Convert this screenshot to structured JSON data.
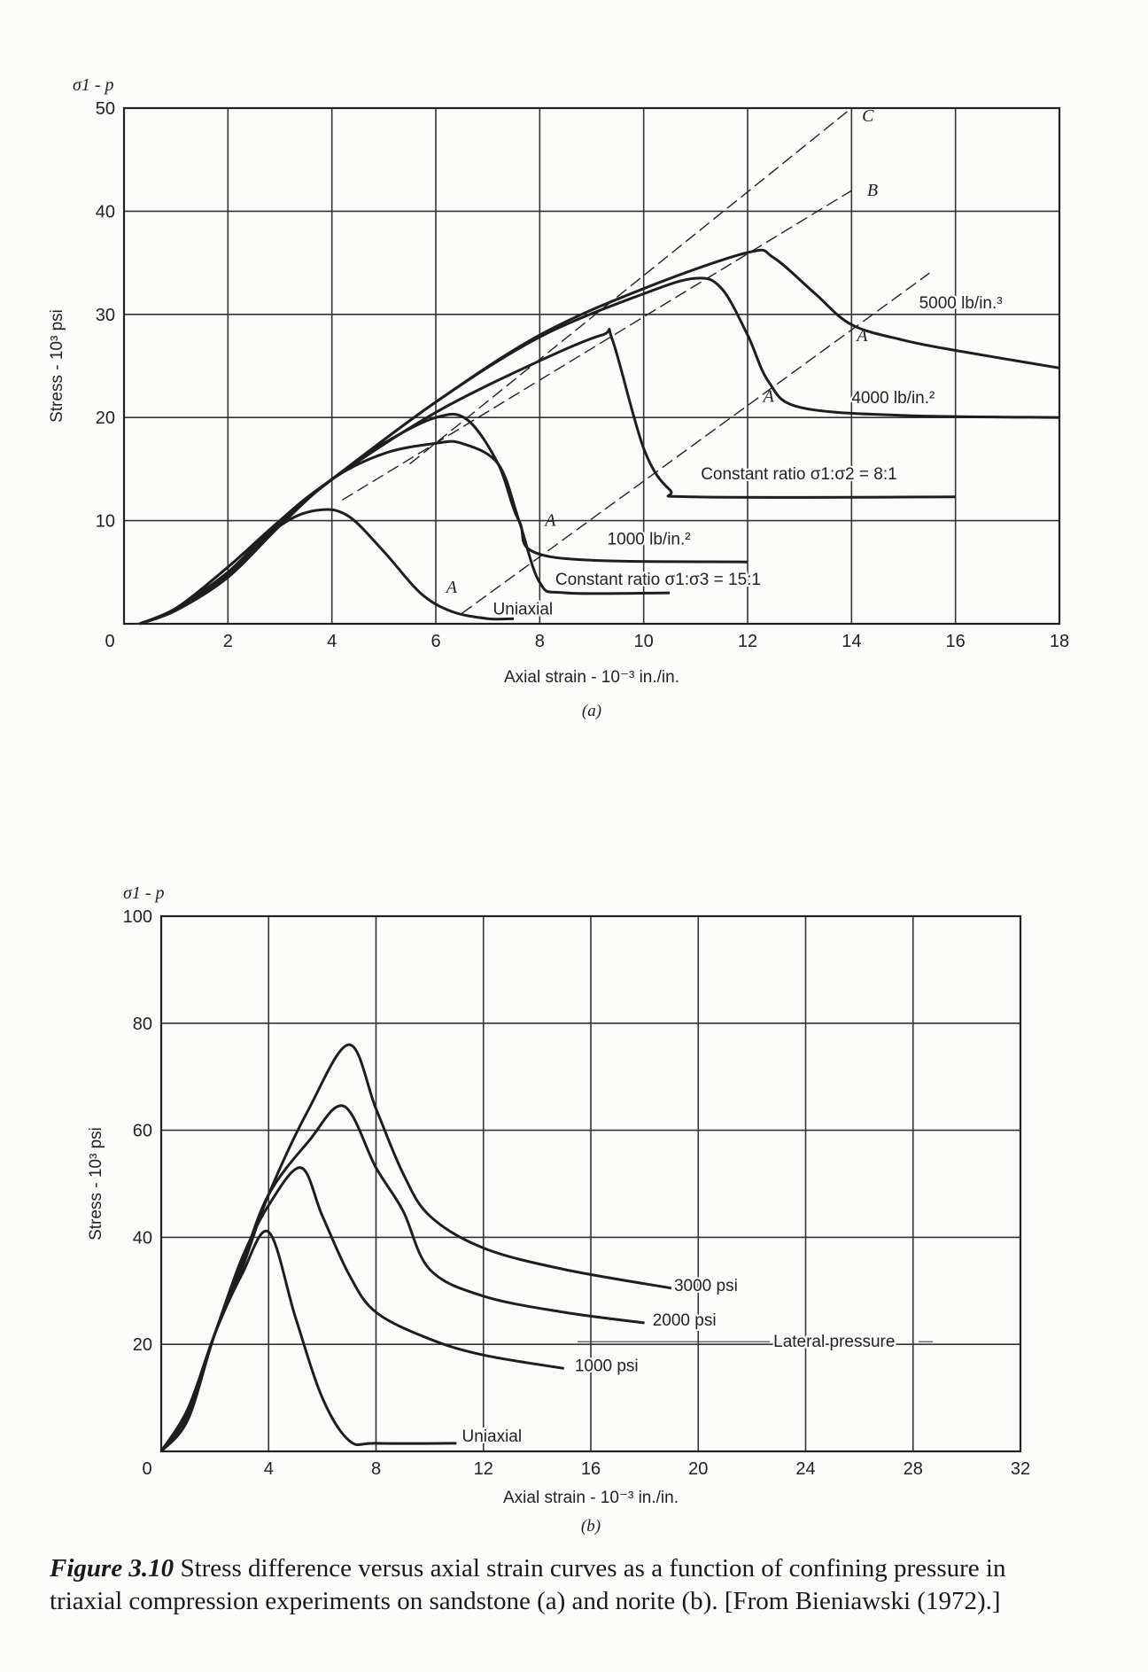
{
  "chart_data": [
    {
      "type": "line",
      "panel_label": "(a)",
      "y_top_label": "σ1 - p",
      "xlabel": "Axial strain - 10⁻³ in./in.",
      "ylabel": "Stress - 10³ psi",
      "xlim": [
        0,
        18
      ],
      "ylim": [
        0,
        50
      ],
      "xticks": [
        0,
        2,
        4,
        6,
        8,
        10,
        12,
        14,
        16,
        18
      ],
      "yticks": [
        0,
        10,
        20,
        30,
        40,
        50
      ],
      "grid": true,
      "series": [
        {
          "name": "Uniaxial",
          "x": [
            0.3,
            1,
            2,
            3,
            3.7,
            4.3,
            5,
            5.7,
            6.3,
            7,
            7.5
          ],
          "y": [
            0,
            1.5,
            5,
            9.5,
            11,
            10.5,
            7,
            3,
            1.2,
            0.5,
            0.5
          ]
        },
        {
          "name": "Constant ratio σ1:σ3 = 15:1",
          "x": [
            0.3,
            1,
            2,
            3,
            4,
            5,
            6,
            6.5,
            7.2,
            7.6,
            8,
            8.5,
            10.5
          ],
          "y": [
            0,
            1.3,
            4.5,
            9.5,
            14,
            16.5,
            17.5,
            17.5,
            15.5,
            10,
            4,
            3,
            3
          ]
        },
        {
          "name": "1000 lb/in.²",
          "x": [
            0.3,
            1,
            2,
            3,
            4,
            5,
            6,
            6.6,
            7.2,
            7.6,
            8.2,
            12
          ],
          "y": [
            0,
            1.4,
            4.8,
            9.8,
            14,
            17.5,
            20,
            19.8,
            15.5,
            10,
            6.5,
            6
          ]
        },
        {
          "name": "Constant ratio σ1:σ2 = 8:1",
          "x": [
            0.3,
            1,
            2,
            3,
            4,
            6,
            8,
            9.2,
            9.4,
            10,
            10.5,
            11,
            16
          ],
          "y": [
            0,
            1.4,
            5,
            10,
            14,
            20.5,
            25.5,
            28,
            27.5,
            17,
            13,
            12.3,
            12.3
          ]
        },
        {
          "name": "4000 lb/in.²",
          "x": [
            0.3,
            1,
            2,
            3,
            4,
            6,
            8,
            10,
            11,
            11.5,
            12,
            12.4,
            13,
            15,
            18
          ],
          "y": [
            0,
            1.5,
            5.5,
            10,
            14,
            21.5,
            27.8,
            32,
            33.5,
            32.5,
            28,
            23.5,
            21,
            20.2,
            20
          ]
        },
        {
          "name": "5000 lb/in.³",
          "x": [
            0.3,
            1,
            2,
            3,
            4,
            6,
            8,
            10,
            12,
            12.5,
            13.3,
            14,
            15,
            16,
            18
          ],
          "y": [
            0,
            1.5,
            5.5,
            10,
            14,
            21.5,
            28,
            32.5,
            36,
            35.5,
            32,
            29,
            27.5,
            26.5,
            24.8
          ]
        }
      ],
      "dashed_lines": [
        {
          "name": "C",
          "x": [
            5.5,
            14
          ],
          "y": [
            15.5,
            50
          ]
        },
        {
          "name": "B",
          "x": [
            4.2,
            14
          ],
          "y": [
            12,
            42
          ]
        },
        {
          "name": "",
          "x": [
            6.5,
            15.5
          ],
          "y": [
            1,
            34
          ]
        }
      ],
      "annotations": [
        "A",
        "A",
        "A",
        "A",
        "C",
        "B"
      ]
    },
    {
      "type": "line",
      "panel_label": "(b)",
      "y_top_label": "σ1 - p",
      "xlabel": "Axial strain - 10⁻³ in./in.",
      "ylabel": "Stress - 10³ psi",
      "xlim": [
        0,
        32
      ],
      "ylim": [
        0,
        100
      ],
      "xticks": [
        0,
        4,
        8,
        12,
        16,
        20,
        24,
        28,
        32
      ],
      "yticks": [
        0,
        20,
        40,
        60,
        80,
        100
      ],
      "grid": true,
      "series": [
        {
          "name": "Uniaxial",
          "x": [
            0,
            1,
            2,
            3,
            4,
            5,
            6,
            7,
            8,
            11
          ],
          "y": [
            0,
            8,
            22,
            33,
            41,
            25,
            10,
            2,
            1.5,
            1.5
          ]
        },
        {
          "name": "1000 psi",
          "x": [
            0,
            1,
            2,
            3,
            4,
            5.2,
            6,
            7,
            8,
            10,
            12,
            15
          ],
          "y": [
            0,
            8,
            22,
            36,
            46,
            53,
            44,
            33,
            26,
            21,
            18,
            15.5
          ]
        },
        {
          "name": "2000 psi",
          "x": [
            0,
            1,
            2,
            3,
            4,
            5.5,
            6.8,
            8,
            9,
            10,
            12,
            15,
            18
          ],
          "y": [
            0,
            7,
            22,
            35,
            48,
            58,
            64.5,
            53,
            45,
            34,
            29,
            26,
            24
          ]
        },
        {
          "name": "3000 psi",
          "x": [
            0,
            1,
            2,
            3,
            4,
            5.5,
            7,
            8,
            9,
            10,
            12,
            15,
            19
          ],
          "y": [
            0,
            6,
            22,
            34,
            48,
            64,
            76,
            64,
            52,
            44,
            38,
            34,
            30.5
          ]
        }
      ],
      "annotations": [
        "Lateral pressure"
      ]
    }
  ],
  "caption": {
    "label": "Figure 3.10",
    "text": " Stress difference versus axial strain curves as a function of confining pressure in triaxial compression experiments on sandstone (a) and norite (b). [From Bieniawski (1972).]"
  }
}
